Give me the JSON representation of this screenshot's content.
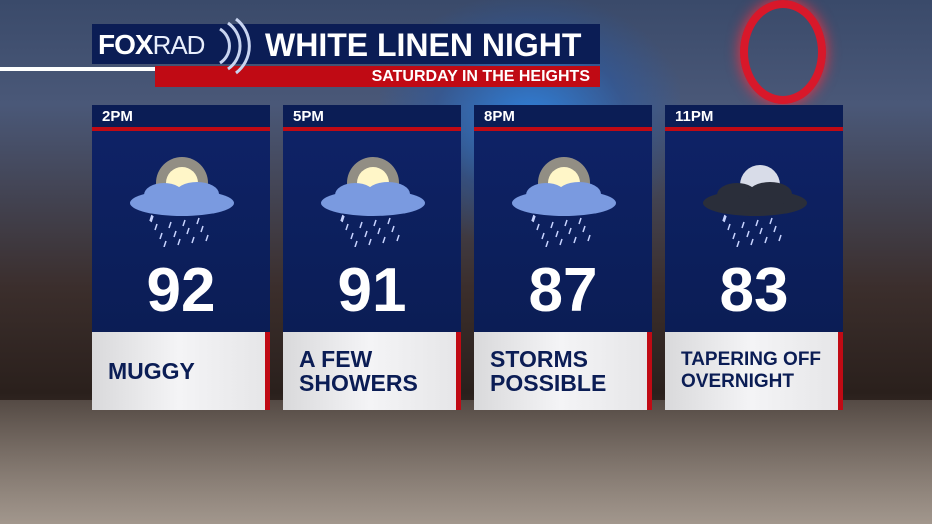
{
  "header": {
    "logo": {
      "brand": "FOX",
      "product": "RAD"
    },
    "title": "WHITE LINEN NIGHT",
    "subtitle": "SATURDAY IN THE HEIGHTS"
  },
  "colors": {
    "navy": "#0b1d55",
    "red": "#c00a14"
  },
  "forecast": [
    {
      "time": "2PM",
      "icon": "sun-cloud-rain-icon",
      "temp": "92",
      "desc": [
        "MUGGY"
      ]
    },
    {
      "time": "5PM",
      "icon": "sun-cloud-rain-icon",
      "temp": "91",
      "desc": [
        "A FEW",
        "SHOWERS"
      ]
    },
    {
      "time": "8PM",
      "icon": "sun-cloud-rain-icon",
      "temp": "87",
      "desc": [
        "STORMS",
        "POSSIBLE"
      ]
    },
    {
      "time": "11PM",
      "icon": "moon-cloud-rain-icon",
      "temp": "83",
      "desc": [
        "TAPERING OFF",
        "OVERNIGHT"
      ]
    }
  ]
}
